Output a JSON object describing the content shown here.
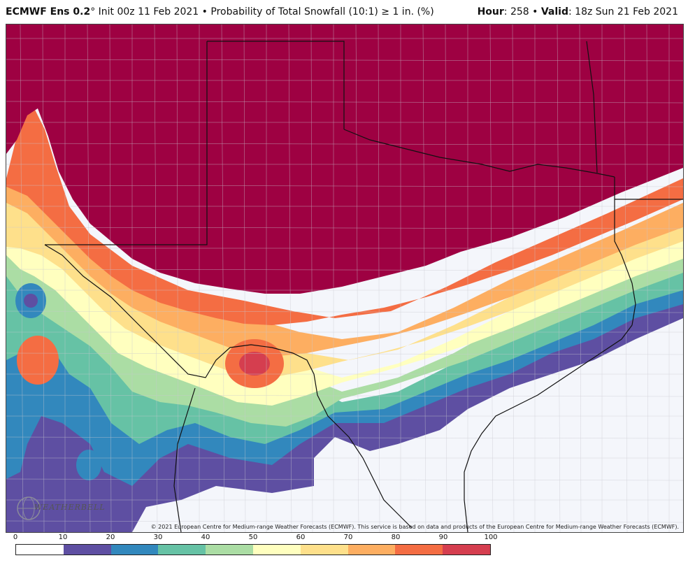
{
  "header": {
    "model": "ECMWF Ens 0.2",
    "degree": "°",
    "init": " Init 00z 11 Feb 2021",
    "bullet": " • ",
    "product": "Probability of Total Snowfall (10:1) ≥ 1 in. (%)",
    "hour_label": "Hour",
    "hour_value": ": 258",
    "valid_label": "Valid",
    "valid_value": ": 18z Sun 21 Feb 2021"
  },
  "copyright": "© 2021 European Centre for Medium-range Weather Forecasts (ECMWF). This service is based on data and products of the European Centre for Medium-range Weather Forecasts (ECMWF).",
  "logo": "WEATHERBELL",
  "colorbar": {
    "ticks": [
      "0",
      "10",
      "20",
      "30",
      "40",
      "50",
      "60",
      "70",
      "80",
      "90",
      "100"
    ],
    "colors": [
      "#ffffff",
      "#5e4fa2",
      "#3288bd",
      "#66c2a5",
      "#abdda4",
      "#ffffbf",
      "#fee08b",
      "#fdae61",
      "#f46d43",
      "#d53e4f",
      "#9e0142"
    ]
  },
  "map_colors": {
    "bg": "#f4f6fb",
    "p10": "#5e4fa2",
    "p20": "#3288bd",
    "p30": "#66c2a5",
    "p40": "#abdda4",
    "p50": "#ffffbf",
    "p60": "#fee08b",
    "p70": "#fdae61",
    "p80": "#f46d43",
    "p90": "#d53e4f",
    "p100": "#9e0142"
  }
}
